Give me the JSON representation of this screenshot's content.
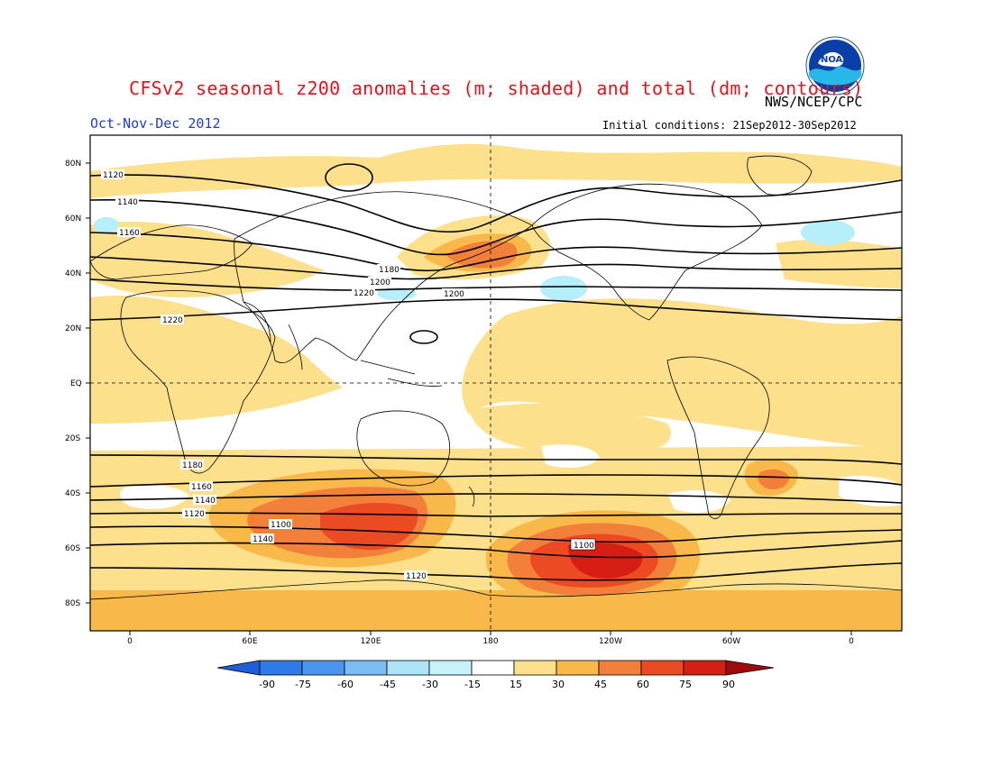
{
  "header": {
    "title": "CFSv2 seasonal z200 anomalies (m; shaded) and total (dm; contours)",
    "period": "Oct-Nov-Dec 2012",
    "agency": "NWS/NCEP/CPC",
    "initial_conditions": "Initial conditions: 21Sep2012-30Sep2012",
    "logo_text": "NOAA"
  },
  "map": {
    "projection": "cylindrical equidistant",
    "lat_ticks": [
      "80N",
      "60N",
      "40N",
      "20N",
      "EQ",
      "20S",
      "40S",
      "60S",
      "80S"
    ],
    "lon_ticks": [
      "0",
      "60E",
      "120E",
      "180",
      "120W",
      "60W",
      "0"
    ],
    "contour_labels": [
      "1120",
      "1140",
      "1160",
      "1180",
      "1200",
      "1220",
      "1220",
      "1200",
      "1180",
      "1160",
      "1140",
      "1120",
      "1100",
      "1140",
      "1120",
      "1100"
    ],
    "colors": {
      "pos15": "#fde08c",
      "pos30": "#f8b84a",
      "pos45": "#f2803a",
      "pos60": "#ec4a22",
      "pos75": "#d61e14",
      "neg15": "#b6eefa",
      "neg30": "#9ad8f4"
    }
  },
  "colorbar": {
    "labels": [
      "-90",
      "-75",
      "-60",
      "-45",
      "-30",
      "-15",
      "15",
      "30",
      "45",
      "60",
      "75",
      "90"
    ],
    "colors": [
      "#1e5fd8",
      "#2f7ae6",
      "#4a95ee",
      "#7cbcf4",
      "#aee4f8",
      "#ffffff",
      "#fde08c",
      "#f8b84a",
      "#f2803a",
      "#ec4a22",
      "#d61e14",
      "#a00a0a"
    ]
  }
}
